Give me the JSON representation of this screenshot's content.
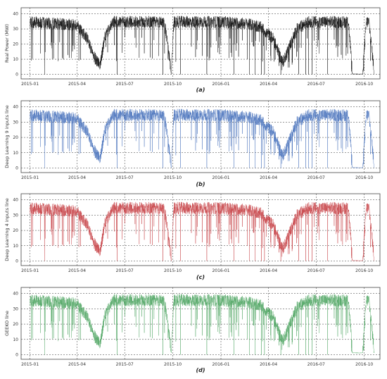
{
  "chart_data": [
    {
      "type": "line",
      "panel_label": "(a)",
      "ylabel": "Real Power (MW)",
      "color": "#111111",
      "yticks": [
        0,
        10,
        20,
        30,
        40
      ],
      "ylim": [
        -3,
        44
      ],
      "xticks": [
        "2015-01",
        "2015-04",
        "2015-07",
        "2015-10",
        "2016-01",
        "2016-04",
        "2016-07",
        "2016-10"
      ],
      "xlim": [
        "2014-12-15",
        "2016-10-31"
      ],
      "grid": true,
      "series": [
        {
          "x": [
            "2015-01-01",
            "2015-02-15",
            "2015-04-01",
            "2015-04-20",
            "2015-05-05",
            "2015-05-15",
            "2015-05-25",
            "2015-06-10",
            "2015-07-01",
            "2015-08-15",
            "2015-09-15",
            "2015-09-28",
            "2015-10-03",
            "2015-11-15",
            "2016-01-01",
            "2016-02-15",
            "2016-03-15",
            "2016-04-10",
            "2016-04-28",
            "2016-05-10",
            "2016-05-25",
            "2016-06-15",
            "2016-07-15",
            "2016-08-15",
            "2016-09-01",
            "2016-09-08",
            "2016-09-28",
            "2016-10-05",
            "2016-10-10",
            "2016-10-20"
          ],
          "values": [
            33,
            32,
            31,
            22,
            9,
            5,
            24,
            33,
            33,
            33,
            33,
            0,
            33,
            33,
            33,
            32,
            30,
            22,
            6,
            16,
            28,
            33,
            33,
            33,
            33,
            0,
            0,
            33,
            33,
            0
          ]
        }
      ]
    },
    {
      "type": "line",
      "panel_label": "(b)",
      "ylabel": "Deep Learning 9 inputs line",
      "color": "#4f77be",
      "yticks": [
        0,
        10,
        20,
        30,
        40
      ],
      "ylim": [
        -3,
        44
      ],
      "xticks": [
        "2015-01",
        "2015-04",
        "2015-07",
        "2015-10",
        "2016-01",
        "2016-04",
        "2016-07",
        "2016-10"
      ],
      "xlim": [
        "2014-12-15",
        "2016-10-31"
      ],
      "grid": true,
      "series": [
        {
          "x": [
            "2015-01-01",
            "2015-02-15",
            "2015-04-01",
            "2015-04-20",
            "2015-05-05",
            "2015-05-15",
            "2015-05-25",
            "2015-06-10",
            "2015-07-01",
            "2015-08-15",
            "2015-09-15",
            "2015-09-28",
            "2015-10-03",
            "2015-11-15",
            "2016-01-01",
            "2016-02-15",
            "2016-03-15",
            "2016-04-10",
            "2016-04-28",
            "2016-05-10",
            "2016-05-25",
            "2016-06-15",
            "2016-07-15",
            "2016-08-15",
            "2016-09-01",
            "2016-09-08",
            "2016-09-28",
            "2016-10-05",
            "2016-10-10",
            "2016-10-20"
          ],
          "values": [
            33,
            32,
            31,
            22,
            9,
            5,
            24,
            33,
            33,
            33,
            33,
            0,
            33,
            33,
            33,
            32,
            30,
            22,
            6,
            16,
            28,
            33,
            33,
            33,
            33,
            0,
            0,
            33,
            33,
            0
          ]
        }
      ]
    },
    {
      "type": "line",
      "panel_label": "(c)",
      "ylabel": "Deep Learning 4 inputs line",
      "color": "#c8474c",
      "yticks": [
        0,
        10,
        20,
        30,
        40
      ],
      "ylim": [
        -3,
        44
      ],
      "xticks": [
        "2015-01",
        "2015-04",
        "2015-07",
        "2015-10",
        "2016-01",
        "2016-04",
        "2016-07",
        "2016-10"
      ],
      "xlim": [
        "2014-12-15",
        "2016-10-31"
      ],
      "grid": true,
      "series": [
        {
          "x": [
            "2015-01-01",
            "2015-02-15",
            "2015-04-01",
            "2015-04-20",
            "2015-05-05",
            "2015-05-15",
            "2015-05-25",
            "2015-06-10",
            "2015-07-01",
            "2015-08-15",
            "2015-09-15",
            "2015-09-28",
            "2015-10-03",
            "2015-11-15",
            "2016-01-01",
            "2016-02-15",
            "2016-03-15",
            "2016-04-10",
            "2016-04-28",
            "2016-05-10",
            "2016-05-25",
            "2016-06-15",
            "2016-07-15",
            "2016-08-15",
            "2016-09-01",
            "2016-09-08",
            "2016-09-28",
            "2016-10-05",
            "2016-10-10",
            "2016-10-20"
          ],
          "values": [
            33,
            32,
            31,
            22,
            9,
            5,
            24,
            33,
            33,
            33,
            33,
            0,
            33,
            33,
            33,
            32,
            30,
            22,
            6,
            16,
            28,
            33,
            33,
            33,
            33,
            0,
            0,
            33,
            33,
            0
          ]
        }
      ]
    },
    {
      "type": "line",
      "panel_label": "(d)",
      "ylabel": "GEEKO line",
      "color": "#55a868",
      "yticks": [
        0,
        10,
        20,
        30,
        40
      ],
      "ylim": [
        -3,
        44
      ],
      "xticks": [
        "2015-01",
        "2015-04",
        "2015-07",
        "2015-10",
        "2016-01",
        "2016-04",
        "2016-07",
        "2016-10"
      ],
      "xlim": [
        "2014-12-15",
        "2016-10-31"
      ],
      "grid": true,
      "series": [
        {
          "x": [
            "2015-01-01",
            "2015-02-15",
            "2015-04-01",
            "2015-04-20",
            "2015-05-05",
            "2015-05-15",
            "2015-05-25",
            "2015-06-10",
            "2015-07-01",
            "2015-08-15",
            "2015-09-15",
            "2015-09-28",
            "2015-10-03",
            "2015-11-15",
            "2016-01-01",
            "2016-02-15",
            "2016-03-15",
            "2016-04-10",
            "2016-04-28",
            "2016-05-10",
            "2016-05-25",
            "2016-06-15",
            "2016-07-15",
            "2016-08-15",
            "2016-09-01",
            "2016-09-08",
            "2016-09-28",
            "2016-10-05",
            "2016-10-10",
            "2016-10-20"
          ],
          "values": [
            34,
            33,
            32,
            23,
            10,
            6,
            25,
            34,
            34,
            34,
            34,
            1,
            34,
            34,
            34,
            33,
            31,
            23,
            7,
            17,
            29,
            34,
            34,
            34,
            34,
            1,
            1,
            34,
            34,
            1
          ]
        }
      ]
    }
  ]
}
